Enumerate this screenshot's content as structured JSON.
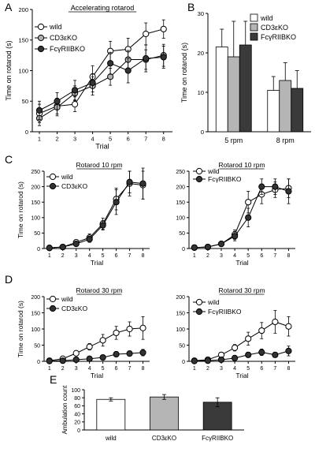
{
  "panels": [
    {
      "id": "A",
      "letter": "A",
      "type": "line",
      "title": "Accelerating rotarod",
      "xlabel": "Trial",
      "ylabel": "Time on rotarod (s)",
      "x": [
        1,
        2,
        3,
        4,
        5,
        6,
        7,
        8
      ],
      "xlim": [
        0.6,
        8.5
      ],
      "ylim": [
        0,
        200
      ],
      "yticks": [
        0,
        50,
        100,
        150,
        200
      ],
      "legend": "top-left",
      "series": [
        {
          "name": "wild",
          "marker": "open",
          "values": [
            30,
            42,
            45,
            90,
            132,
            135,
            160,
            168
          ],
          "errors": [
            15,
            13,
            12,
            18,
            16,
            18,
            18,
            15
          ]
        },
        {
          "name": "CD3εKO",
          "marker": "gray",
          "values": [
            22,
            40,
            63,
            75,
            90,
            118,
            118,
            125
          ],
          "errors": [
            12,
            14,
            12,
            15,
            14,
            15,
            16,
            18
          ]
        },
        {
          "name": "FcγRIIBKO",
          "marker": "black",
          "values": [
            35,
            50,
            68,
            80,
            112,
            100,
            120,
            122
          ],
          "errors": [
            15,
            14,
            16,
            15,
            18,
            20,
            22,
            18
          ]
        }
      ]
    },
    {
      "id": "B",
      "letter": "B",
      "type": "bar",
      "ylabel": "Time on rotarod (s)",
      "categories": [
        "5 rpm",
        "8 rpm"
      ],
      "ylim": [
        0,
        30
      ],
      "yticks": [
        0,
        10,
        20,
        30
      ],
      "legend": "top",
      "series": [
        {
          "name": "wild",
          "color": "#ffffff",
          "values": [
            21.5,
            10.5
          ],
          "errors": [
            4.5,
            3.5
          ]
        },
        {
          "name": "CD3εKO",
          "color": "#b5b5b5",
          "values": [
            19,
            13
          ],
          "errors": [
            9,
            4.5
          ]
        },
        {
          "name": "FcγRIIBKO",
          "color": "#3a3a3a",
          "values": [
            22,
            11
          ],
          "errors": [
            6,
            4.5
          ]
        }
      ]
    },
    {
      "id": "C1",
      "letter": "C",
      "type": "line",
      "title": "Rotarod 10 rpm",
      "xlabel": "Trial",
      "ylabel": "Time on rotarod (s)",
      "x": [
        1,
        2,
        3,
        4,
        5,
        6,
        7,
        8
      ],
      "xlim": [
        0.6,
        8.5
      ],
      "ylim": [
        0,
        250
      ],
      "yticks": [
        0,
        50,
        100,
        150,
        200,
        250
      ],
      "legend": "top-left",
      "series": [
        {
          "name": "wild",
          "marker": "open",
          "values": [
            2,
            5,
            20,
            35,
            80,
            160,
            210,
            205
          ],
          "errors": [
            1,
            3,
            8,
            12,
            18,
            35,
            40,
            45
          ]
        },
        {
          "name": "CD3εKO",
          "marker": "black",
          "values": [
            2,
            5,
            15,
            30,
            75,
            150,
            215,
            210
          ],
          "errors": [
            1,
            3,
            6,
            10,
            15,
            40,
            35,
            50
          ]
        }
      ]
    },
    {
      "id": "C2",
      "letter": "",
      "type": "line",
      "title": "Rotarod 10 rpm",
      "xlabel": "Trial",
      "ylabel": "",
      "x": [
        1,
        2,
        3,
        4,
        5,
        6,
        7,
        8
      ],
      "xlim": [
        0.6,
        8.5
      ],
      "ylim": [
        0,
        250
      ],
      "yticks": [
        0,
        50,
        100,
        150,
        200,
        250
      ],
      "legend": "top-left",
      "series": [
        {
          "name": "wild",
          "marker": "open",
          "values": [
            3,
            5,
            15,
            45,
            150,
            175,
            190,
            195
          ],
          "errors": [
            1,
            3,
            8,
            15,
            35,
            30,
            25,
            30
          ]
        },
        {
          "name": "FcγRIIBKO",
          "marker": "black",
          "values": [
            3,
            5,
            15,
            40,
            100,
            200,
            200,
            185
          ],
          "errors": [
            1,
            3,
            6,
            15,
            30,
            25,
            25,
            40
          ]
        }
      ]
    },
    {
      "id": "D1",
      "letter": "D",
      "type": "line",
      "title": "Rotarod 30 rpm",
      "xlabel": "Trial",
      "ylabel": "Time on rotarod (s)",
      "x": [
        1,
        2,
        3,
        4,
        5,
        6,
        7,
        8
      ],
      "xlim": [
        0.6,
        8.5
      ],
      "ylim": [
        0,
        200
      ],
      "yticks": [
        0,
        50,
        100,
        150,
        200
      ],
      "legend": "top-left",
      "series": [
        {
          "name": "wild",
          "marker": "open",
          "values": [
            2,
            8,
            25,
            45,
            65,
            88,
            100,
            103
          ],
          "errors": [
            1,
            3,
            8,
            10,
            18,
            20,
            22,
            35
          ]
        },
        {
          "name": "CD3εKO",
          "marker": "black",
          "values": [
            1,
            2,
            5,
            8,
            12,
            22,
            24,
            27
          ],
          "errors": [
            0.5,
            1,
            3,
            4,
            5,
            8,
            8,
            10
          ]
        }
      ]
    },
    {
      "id": "D2",
      "letter": "",
      "type": "line",
      "title": "Rotarod 30 rpm",
      "xlabel": "Trial",
      "ylabel": "",
      "x": [
        1,
        2,
        3,
        4,
        5,
        6,
        7,
        8
      ],
      "xlim": [
        0.6,
        8.5
      ],
      "ylim": [
        0,
        200
      ],
      "yticks": [
        0,
        50,
        100,
        150,
        200
      ],
      "legend": "top-left",
      "series": [
        {
          "name": "wild",
          "marker": "open",
          "values": [
            2,
            5,
            20,
            42,
            70,
            95,
            122,
            108
          ],
          "errors": [
            1,
            3,
            8,
            10,
            20,
            25,
            35,
            30
          ]
        },
        {
          "name": "FcγRIIBKO",
          "marker": "black",
          "values": [
            1,
            2,
            5,
            10,
            20,
            28,
            20,
            32
          ],
          "errors": [
            0.5,
            1,
            3,
            5,
            8,
            10,
            8,
            15
          ]
        }
      ]
    },
    {
      "id": "E",
      "letter": "E",
      "type": "bar",
      "ylabel": "Ambulation count",
      "categories": [
        "wild",
        "CD3εKO",
        "FcγRIIBKO"
      ],
      "ylim": [
        0,
        100
      ],
      "yticks": [
        0,
        20,
        40,
        60,
        80,
        100
      ],
      "legend": "none",
      "series": [
        {
          "name": "",
          "colors": [
            "#ffffff",
            "#b5b5b5",
            "#3a3a3a"
          ],
          "values": [
            76,
            82,
            69
          ],
          "errors": [
            4,
            6,
            11
          ]
        }
      ]
    }
  ]
}
